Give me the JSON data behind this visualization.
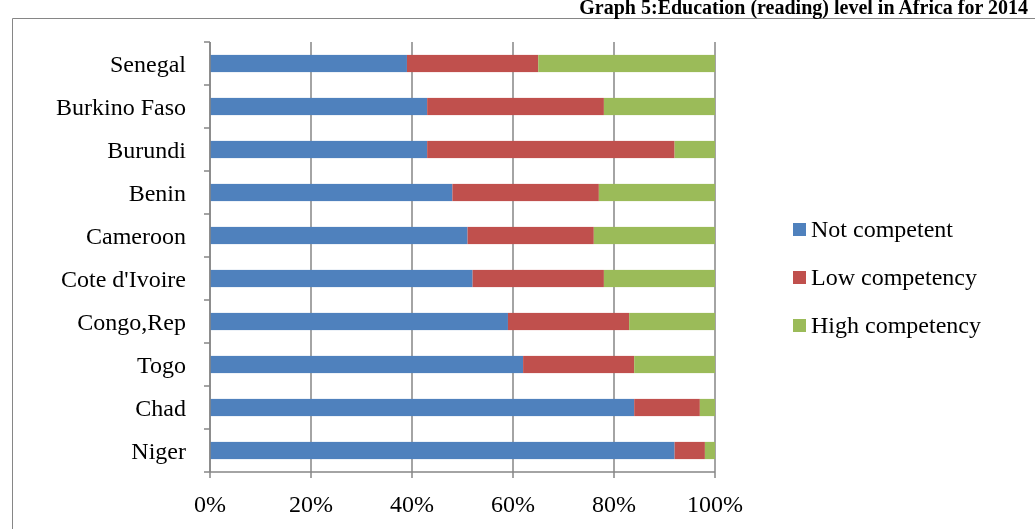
{
  "chart_data": {
    "type": "bar",
    "title": "Graph 5:Education (reading) level in Africa for 2014",
    "orientation": "horizontal",
    "stacked": true,
    "categories": [
      "Senegal",
      "Burkino Faso",
      "Burundi",
      "Benin",
      "Cameroon",
      "Cote d'Ivoire",
      "Congo,Rep",
      "Togo",
      "Chad",
      "Niger"
    ],
    "series": [
      {
        "name": "Not competent",
        "color": "#4f81bd",
        "values": [
          39,
          43,
          43,
          48,
          51,
          52,
          59,
          62,
          84,
          92
        ]
      },
      {
        "name": "Low competency",
        "color": "#c0504d",
        "values": [
          26,
          35,
          49,
          29,
          25,
          26,
          24,
          22,
          13,
          6
        ]
      },
      {
        "name": "High competency",
        "color": "#9bbb59",
        "values": [
          35,
          22,
          8,
          23,
          24,
          22,
          17,
          16,
          3,
          2
        ]
      }
    ],
    "xlim": [
      0,
      100
    ],
    "xticks": [
      {
        "value": 0,
        "label": "0%"
      },
      {
        "value": 20,
        "label": "20%"
      },
      {
        "value": 40,
        "label": "40%"
      },
      {
        "value": 60,
        "label": "60%"
      },
      {
        "value": 80,
        "label": "80%"
      },
      {
        "value": 100,
        "label": "100%"
      }
    ],
    "grid": "x",
    "legend": "right"
  }
}
